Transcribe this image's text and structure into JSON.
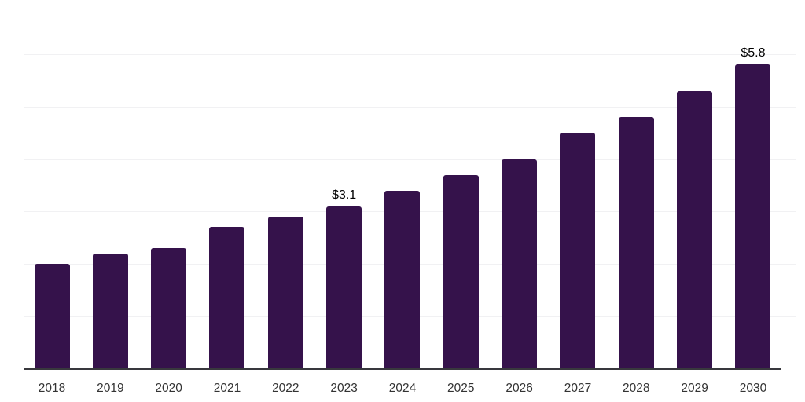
{
  "chart_data": {
    "type": "bar",
    "title": "",
    "xlabel": "",
    "ylabel": "",
    "categories": [
      "2018",
      "2019",
      "2020",
      "2021",
      "2022",
      "2023",
      "2024",
      "2025",
      "2026",
      "2027",
      "2028",
      "2029",
      "2030"
    ],
    "values": [
      2.0,
      2.2,
      2.3,
      2.7,
      2.9,
      3.1,
      3.4,
      3.7,
      4.0,
      4.5,
      4.8,
      5.3,
      5.8
    ],
    "point_labels": [
      {
        "category": "2023",
        "text": "$3.1"
      },
      {
        "category": "2030",
        "text": "$5.8"
      }
    ],
    "ylim": [
      0,
      7
    ],
    "grid": "horizontal gridlines at every 1 unit, no y-axis tick labels",
    "legend": "none",
    "colors": {
      "bar": "#35124B",
      "axis_line": "#38383D",
      "gridline": "#F1F1F3",
      "tick_label": "#333333",
      "data_label": "#000000",
      "background": "#FFFFFF"
    }
  }
}
